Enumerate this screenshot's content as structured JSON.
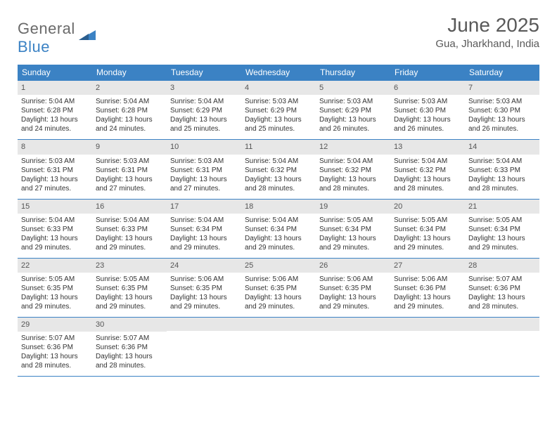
{
  "logo": {
    "main": "General",
    "sub": "Blue"
  },
  "title": "June 2025",
  "location": "Gua, Jharkhand, India",
  "colors": {
    "header_bg": "#3b82c4",
    "header_text": "#ffffff",
    "daynum_bg": "#e7e7e7",
    "border": "#3b82c4",
    "title_text": "#595959",
    "body_text": "#333333",
    "logo_gray": "#6a6a6a",
    "logo_blue": "#3b82c4"
  },
  "weekdays": [
    "Sunday",
    "Monday",
    "Tuesday",
    "Wednesday",
    "Thursday",
    "Friday",
    "Saturday"
  ],
  "weeks": [
    [
      {
        "n": "1",
        "sr": "5:04 AM",
        "ss": "6:28 PM",
        "dl": "13 hours and 24 minutes."
      },
      {
        "n": "2",
        "sr": "5:04 AM",
        "ss": "6:28 PM",
        "dl": "13 hours and 24 minutes."
      },
      {
        "n": "3",
        "sr": "5:04 AM",
        "ss": "6:29 PM",
        "dl": "13 hours and 25 minutes."
      },
      {
        "n": "4",
        "sr": "5:03 AM",
        "ss": "6:29 PM",
        "dl": "13 hours and 25 minutes."
      },
      {
        "n": "5",
        "sr": "5:03 AM",
        "ss": "6:29 PM",
        "dl": "13 hours and 26 minutes."
      },
      {
        "n": "6",
        "sr": "5:03 AM",
        "ss": "6:30 PM",
        "dl": "13 hours and 26 minutes."
      },
      {
        "n": "7",
        "sr": "5:03 AM",
        "ss": "6:30 PM",
        "dl": "13 hours and 26 minutes."
      }
    ],
    [
      {
        "n": "8",
        "sr": "5:03 AM",
        "ss": "6:31 PM",
        "dl": "13 hours and 27 minutes."
      },
      {
        "n": "9",
        "sr": "5:03 AM",
        "ss": "6:31 PM",
        "dl": "13 hours and 27 minutes."
      },
      {
        "n": "10",
        "sr": "5:03 AM",
        "ss": "6:31 PM",
        "dl": "13 hours and 27 minutes."
      },
      {
        "n": "11",
        "sr": "5:04 AM",
        "ss": "6:32 PM",
        "dl": "13 hours and 28 minutes."
      },
      {
        "n": "12",
        "sr": "5:04 AM",
        "ss": "6:32 PM",
        "dl": "13 hours and 28 minutes."
      },
      {
        "n": "13",
        "sr": "5:04 AM",
        "ss": "6:32 PM",
        "dl": "13 hours and 28 minutes."
      },
      {
        "n": "14",
        "sr": "5:04 AM",
        "ss": "6:33 PM",
        "dl": "13 hours and 28 minutes."
      }
    ],
    [
      {
        "n": "15",
        "sr": "5:04 AM",
        "ss": "6:33 PM",
        "dl": "13 hours and 29 minutes."
      },
      {
        "n": "16",
        "sr": "5:04 AM",
        "ss": "6:33 PM",
        "dl": "13 hours and 29 minutes."
      },
      {
        "n": "17",
        "sr": "5:04 AM",
        "ss": "6:34 PM",
        "dl": "13 hours and 29 minutes."
      },
      {
        "n": "18",
        "sr": "5:04 AM",
        "ss": "6:34 PM",
        "dl": "13 hours and 29 minutes."
      },
      {
        "n": "19",
        "sr": "5:05 AM",
        "ss": "6:34 PM",
        "dl": "13 hours and 29 minutes."
      },
      {
        "n": "20",
        "sr": "5:05 AM",
        "ss": "6:34 PM",
        "dl": "13 hours and 29 minutes."
      },
      {
        "n": "21",
        "sr": "5:05 AM",
        "ss": "6:34 PM",
        "dl": "13 hours and 29 minutes."
      }
    ],
    [
      {
        "n": "22",
        "sr": "5:05 AM",
        "ss": "6:35 PM",
        "dl": "13 hours and 29 minutes."
      },
      {
        "n": "23",
        "sr": "5:05 AM",
        "ss": "6:35 PM",
        "dl": "13 hours and 29 minutes."
      },
      {
        "n": "24",
        "sr": "5:06 AM",
        "ss": "6:35 PM",
        "dl": "13 hours and 29 minutes."
      },
      {
        "n": "25",
        "sr": "5:06 AM",
        "ss": "6:35 PM",
        "dl": "13 hours and 29 minutes."
      },
      {
        "n": "26",
        "sr": "5:06 AM",
        "ss": "6:35 PM",
        "dl": "13 hours and 29 minutes."
      },
      {
        "n": "27",
        "sr": "5:06 AM",
        "ss": "6:36 PM",
        "dl": "13 hours and 29 minutes."
      },
      {
        "n": "28",
        "sr": "5:07 AM",
        "ss": "6:36 PM",
        "dl": "13 hours and 28 minutes."
      }
    ],
    [
      {
        "n": "29",
        "sr": "5:07 AM",
        "ss": "6:36 PM",
        "dl": "13 hours and 28 minutes."
      },
      {
        "n": "30",
        "sr": "5:07 AM",
        "ss": "6:36 PM",
        "dl": "13 hours and 28 minutes."
      },
      null,
      null,
      null,
      null,
      null
    ]
  ],
  "labels": {
    "sunrise": "Sunrise:",
    "sunset": "Sunset:",
    "daylight": "Daylight:"
  }
}
